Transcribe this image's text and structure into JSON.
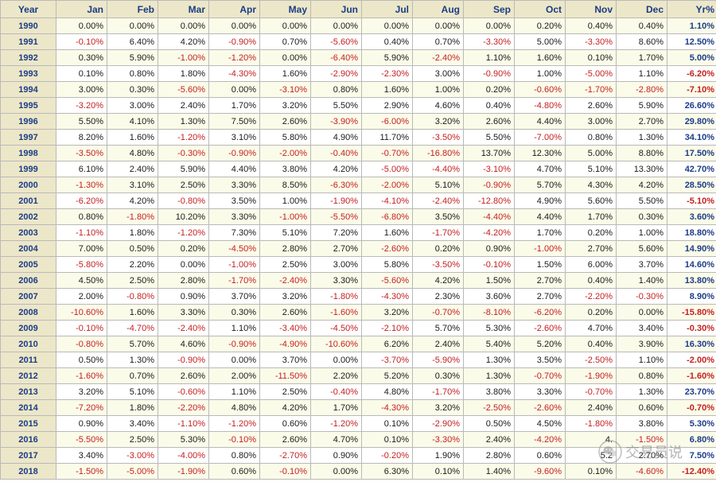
{
  "headers": [
    "Year",
    "Jan",
    "Feb",
    "Mar",
    "Apr",
    "May",
    "Jun",
    "Jul",
    "Aug",
    "Sep",
    "Oct",
    "Nov",
    "Dec",
    "Yr%"
  ],
  "rows": [
    {
      "year": "1990",
      "values": [
        "0.00%",
        "0.00%",
        "0.00%",
        "0.00%",
        "0.00%",
        "0.00%",
        "0.00%",
        "0.00%",
        "0.00%",
        "0.20%",
        "0.40%",
        "0.40%",
        "1.10%"
      ]
    },
    {
      "year": "1991",
      "values": [
        "-0.10%",
        "6.40%",
        "4.20%",
        "-0.90%",
        "0.70%",
        "-5.60%",
        "0.40%",
        "0.70%",
        "-3.30%",
        "5.00%",
        "-3.30%",
        "8.60%",
        "12.50%"
      ]
    },
    {
      "year": "1992",
      "values": [
        "0.30%",
        "5.90%",
        "-1.00%",
        "-1.20%",
        "0.00%",
        "-6.40%",
        "5.90%",
        "-2.40%",
        "1.10%",
        "1.60%",
        "0.10%",
        "1.70%",
        "5.00%"
      ]
    },
    {
      "year": "1993",
      "values": [
        "0.10%",
        "0.80%",
        "1.80%",
        "-4.30%",
        "1.60%",
        "-2.90%",
        "-2.30%",
        "3.00%",
        "-0.90%",
        "1.00%",
        "-5.00%",
        "1.10%",
        "-6.20%"
      ]
    },
    {
      "year": "1994",
      "values": [
        "3.00%",
        "0.30%",
        "-5.60%",
        "0.00%",
        "-3.10%",
        "0.80%",
        "1.60%",
        "1.00%",
        "0.20%",
        "-0.60%",
        "-1.70%",
        "-2.80%",
        "-7.10%"
      ]
    },
    {
      "year": "1995",
      "values": [
        "-3.20%",
        "3.00%",
        "2.40%",
        "1.70%",
        "3.20%",
        "5.50%",
        "2.90%",
        "4.60%",
        "0.40%",
        "-4.80%",
        "2.60%",
        "5.90%",
        "26.60%"
      ]
    },
    {
      "year": "1996",
      "values": [
        "5.50%",
        "4.10%",
        "1.30%",
        "7.50%",
        "2.60%",
        "-3.90%",
        "-6.00%",
        "3.20%",
        "2.60%",
        "4.40%",
        "3.00%",
        "2.70%",
        "29.80%"
      ]
    },
    {
      "year": "1997",
      "values": [
        "8.20%",
        "1.60%",
        "-1.20%",
        "3.10%",
        "5.80%",
        "4.90%",
        "11.70%",
        "-3.50%",
        "5.50%",
        "-7.00%",
        "0.80%",
        "1.30%",
        "34.10%"
      ]
    },
    {
      "year": "1998",
      "values": [
        "-3.50%",
        "4.80%",
        "-0.30%",
        "-0.90%",
        "-2.00%",
        "-0.40%",
        "-0.70%",
        "-16.80%",
        "13.70%",
        "12.30%",
        "5.00%",
        "8.80%",
        "17.50%"
      ]
    },
    {
      "year": "1999",
      "values": [
        "6.10%",
        "2.40%",
        "5.90%",
        "4.40%",
        "3.80%",
        "4.20%",
        "-5.00%",
        "-4.40%",
        "-3.10%",
        "4.70%",
        "5.10%",
        "13.30%",
        "42.70%"
      ]
    },
    {
      "year": "2000",
      "values": [
        "-1.30%",
        "3.10%",
        "2.50%",
        "3.30%",
        "8.50%",
        "-6.30%",
        "-2.00%",
        "5.10%",
        "-0.90%",
        "5.70%",
        "4.30%",
        "4.20%",
        "28.50%"
      ]
    },
    {
      "year": "2001",
      "values": [
        "-6.20%",
        "4.20%",
        "-0.80%",
        "3.50%",
        "1.00%",
        "-1.90%",
        "-4.10%",
        "-2.40%",
        "-12.80%",
        "4.90%",
        "5.60%",
        "5.50%",
        "-5.10%"
      ]
    },
    {
      "year": "2002",
      "values": [
        "0.80%",
        "-1.80%",
        "10.20%",
        "3.30%",
        "-1.00%",
        "-5.50%",
        "-6.80%",
        "3.50%",
        "-4.40%",
        "4.40%",
        "1.70%",
        "0.30%",
        "3.60%"
      ]
    },
    {
      "year": "2003",
      "values": [
        "-1.10%",
        "1.80%",
        "-1.20%",
        "7.30%",
        "5.10%",
        "7.20%",
        "1.60%",
        "-1.70%",
        "-4.20%",
        "1.70%",
        "0.20%",
        "1.00%",
        "18.80%"
      ]
    },
    {
      "year": "2004",
      "values": [
        "7.00%",
        "0.50%",
        "0.20%",
        "-4.50%",
        "2.80%",
        "2.70%",
        "-2.60%",
        "0.20%",
        "0.90%",
        "-1.00%",
        "2.70%",
        "5.60%",
        "14.90%"
      ]
    },
    {
      "year": "2005",
      "values": [
        "-5.80%",
        "2.20%",
        "0.00%",
        "-1.00%",
        "2.50%",
        "3.00%",
        "5.80%",
        "-3.50%",
        "-0.10%",
        "1.50%",
        "6.00%",
        "3.70%",
        "14.60%"
      ]
    },
    {
      "year": "2006",
      "values": [
        "4.50%",
        "2.50%",
        "2.80%",
        "-1.70%",
        "-2.40%",
        "3.30%",
        "-5.60%",
        "4.20%",
        "1.50%",
        "2.70%",
        "0.40%",
        "1.40%",
        "13.80%"
      ]
    },
    {
      "year": "2007",
      "values": [
        "2.00%",
        "-0.80%",
        "0.90%",
        "3.70%",
        "3.20%",
        "-1.80%",
        "-4.30%",
        "2.30%",
        "3.60%",
        "2.70%",
        "-2.20%",
        "-0.30%",
        "8.90%"
      ]
    },
    {
      "year": "2008",
      "values": [
        "-10.60%",
        "1.60%",
        "3.30%",
        "0.30%",
        "2.60%",
        "-1.60%",
        "3.20%",
        "-0.70%",
        "-8.10%",
        "-6.20%",
        "0.20%",
        "0.00%",
        "-15.80%"
      ]
    },
    {
      "year": "2009",
      "values": [
        "-0.10%",
        "-4.70%",
        "-2.40%",
        "1.10%",
        "-3.40%",
        "-4.50%",
        "-2.10%",
        "5.70%",
        "5.30%",
        "-2.60%",
        "4.70%",
        "3.40%",
        "-0.30%"
      ]
    },
    {
      "year": "2010",
      "values": [
        "-0.80%",
        "5.70%",
        "4.60%",
        "-0.90%",
        "-4.90%",
        "-10.60%",
        "6.20%",
        "2.40%",
        "5.40%",
        "5.20%",
        "0.40%",
        "3.90%",
        "16.30%"
      ]
    },
    {
      "year": "2011",
      "values": [
        "0.50%",
        "1.30%",
        "-0.90%",
        "0.00%",
        "3.70%",
        "0.00%",
        "-3.70%",
        "-5.90%",
        "1.30%",
        "3.50%",
        "-2.50%",
        "1.10%",
        "-2.00%"
      ]
    },
    {
      "year": "2012",
      "values": [
        "-1.60%",
        "0.70%",
        "2.60%",
        "2.00%",
        "-11.50%",
        "2.20%",
        "5.20%",
        "0.30%",
        "1.30%",
        "-0.70%",
        "-1.90%",
        "0.80%",
        "-1.60%"
      ]
    },
    {
      "year": "2013",
      "values": [
        "3.20%",
        "5.10%",
        "-0.60%",
        "1.10%",
        "2.50%",
        "-0.40%",
        "4.80%",
        "-1.70%",
        "3.80%",
        "3.30%",
        "-0.70%",
        "1.30%",
        "23.70%"
      ]
    },
    {
      "year": "2014",
      "values": [
        "-7.20%",
        "1.80%",
        "-2.20%",
        "4.80%",
        "4.20%",
        "1.70%",
        "-4.30%",
        "3.20%",
        "-2.50%",
        "-2.60%",
        "2.40%",
        "0.60%",
        "-0.70%"
      ]
    },
    {
      "year": "2015",
      "values": [
        "0.90%",
        "3.40%",
        "-1.10%",
        "-1.20%",
        "0.60%",
        "-1.20%",
        "0.10%",
        "-2.90%",
        "0.50%",
        "4.50%",
        "-1.80%",
        "3.80%",
        "5.30%"
      ]
    },
    {
      "year": "2016",
      "values": [
        "-5.50%",
        "2.50%",
        "5.30%",
        "-0.10%",
        "2.60%",
        "4.70%",
        "0.10%",
        "-3.30%",
        "2.40%",
        "-4.20%",
        "4.",
        "-1.50%",
        "6.80%"
      ]
    },
    {
      "year": "2017",
      "values": [
        "3.40%",
        "-3.00%",
        "-4.00%",
        "0.80%",
        "-2.70%",
        "0.90%",
        "-0.20%",
        "1.90%",
        "2.80%",
        "0.60%",
        "5.2",
        "2.70%",
        "7.50%"
      ]
    },
    {
      "year": "2018",
      "values": [
        "-1.50%",
        "-5.00%",
        "-1.90%",
        "0.60%",
        "-0.10%",
        "0.00%",
        "6.30%",
        "0.10%",
        "1.40%",
        "-9.60%",
        "0.10%",
        "-4.60%",
        "-12.40%"
      ]
    }
  ],
  "watermark": {
    "text": "交易员说",
    "icon": "wechat-icon"
  },
  "colors": {
    "header_bg": "#ece7c8",
    "header_text": "#1b3c87",
    "negative": "#c41f1f",
    "positive": "#1a1a1a",
    "row_alt": "#fbfbe9"
  }
}
